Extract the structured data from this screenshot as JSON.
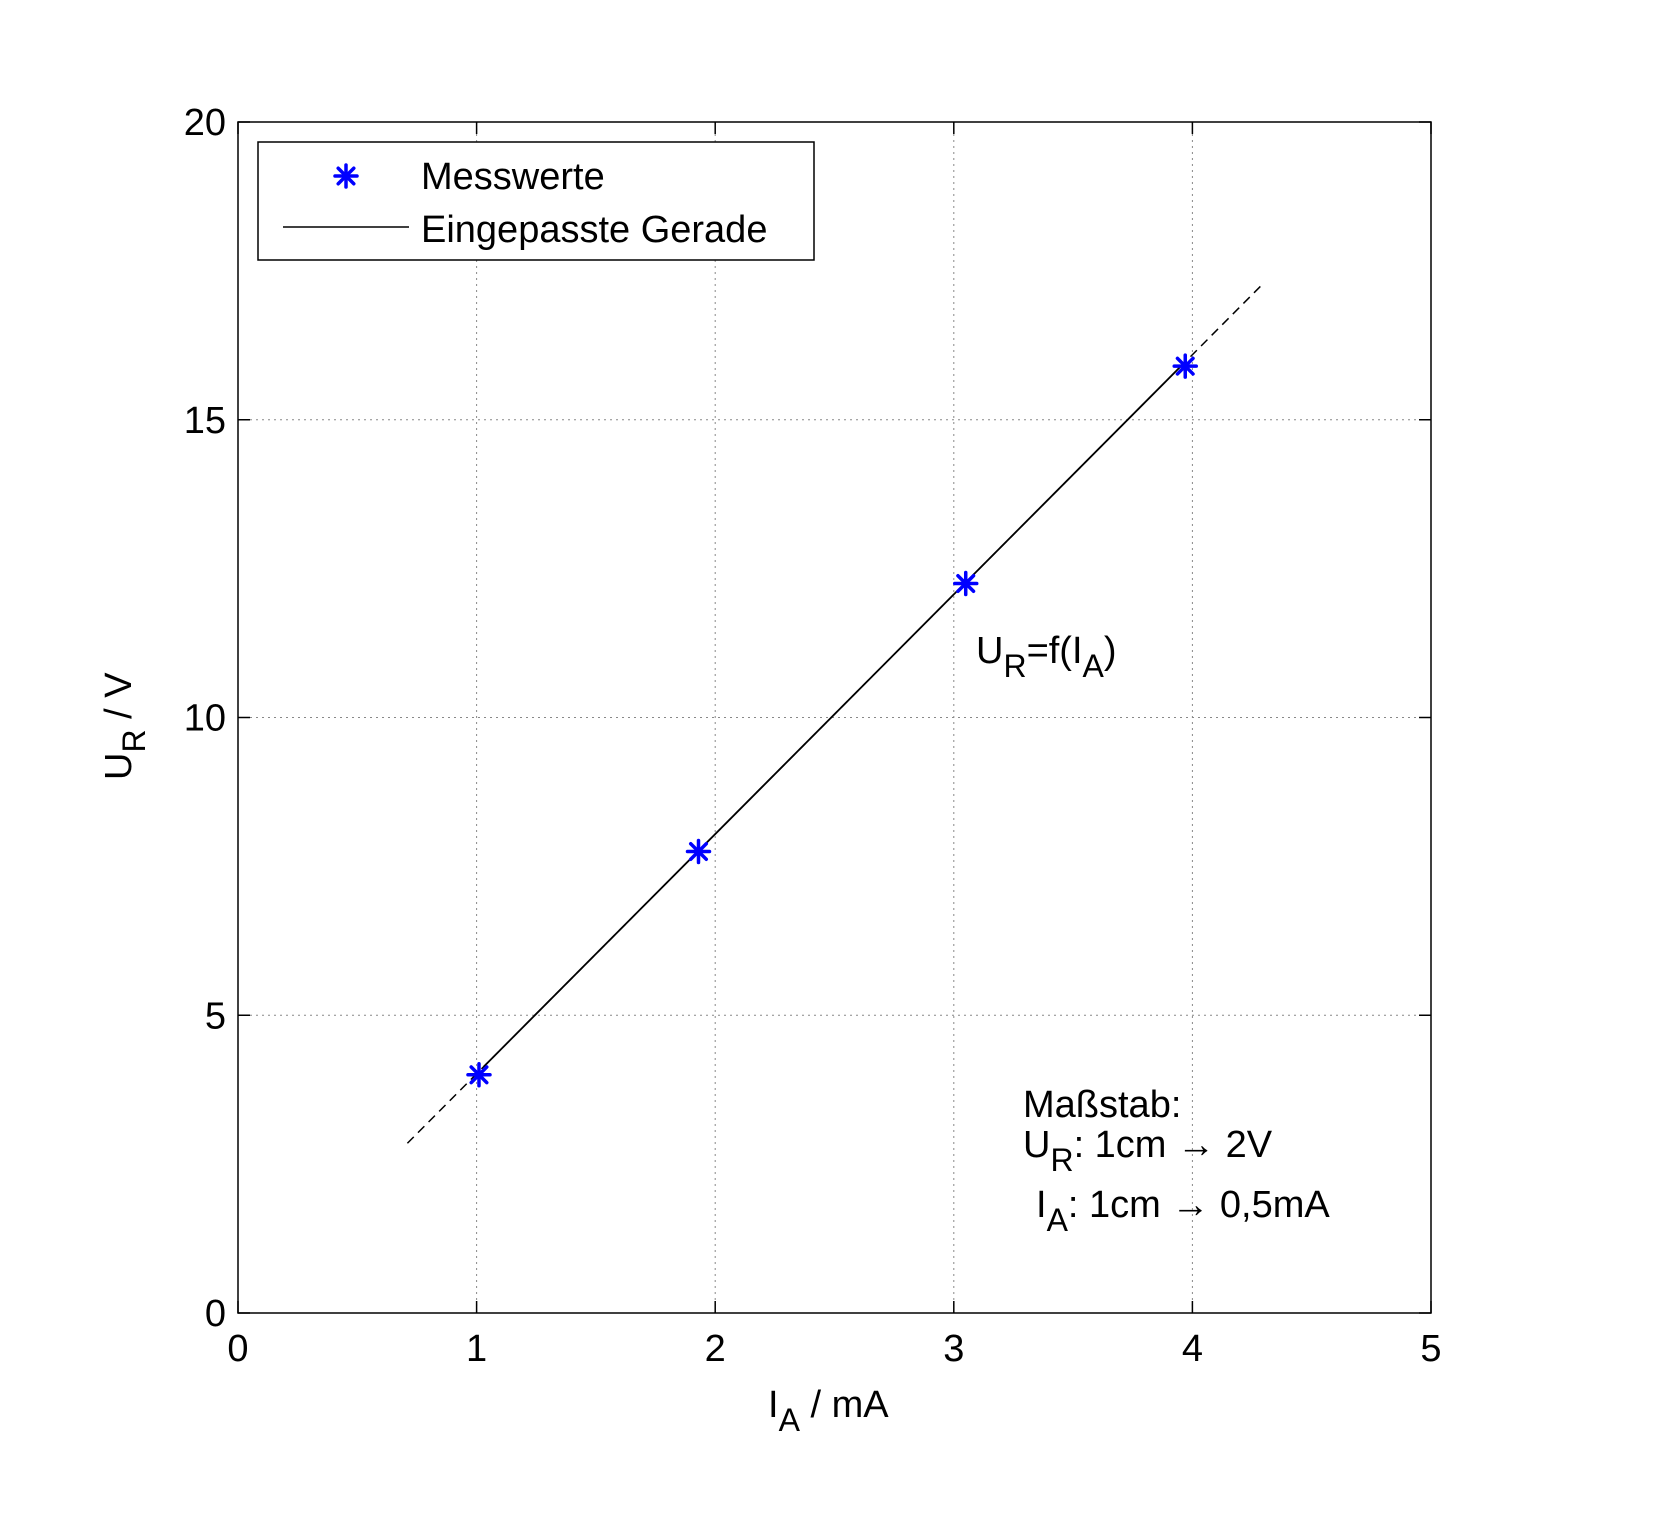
{
  "chart_data": {
    "type": "scatter",
    "xlabel": {
      "main": "I",
      "sub": "A",
      "rest": " / mA"
    },
    "ylabel": {
      "main": "U",
      "sub": "R",
      "rest": " / V"
    },
    "xlim": [
      0,
      5
    ],
    "ylim": [
      0,
      20
    ],
    "xticks": [
      "0",
      "1",
      "2",
      "3",
      "4",
      "5"
    ],
    "yticks": [
      "0",
      "5",
      "10",
      "15",
      "20"
    ],
    "grid": true,
    "legend": {
      "position": "top-left",
      "entries": [
        "Messwerte",
        "Eingepasste Gerade"
      ]
    },
    "colors": {
      "points": "#0000ff",
      "line": "#000000"
    },
    "series": [
      {
        "name": "Messwerte",
        "kind": "points",
        "x": [
          1.01,
          1.93,
          3.05,
          3.97
        ],
        "y": [
          4.0,
          7.75,
          12.25,
          15.9
        ]
      },
      {
        "name": "Eingepasste Gerade",
        "kind": "line",
        "x": [
          0.71,
          4.3
        ],
        "y": [
          2.85,
          17.3
        ],
        "solid_range": [
          1.03,
          3.95
        ]
      }
    ],
    "annotations": {
      "function_label": {
        "a": "U",
        "b": "R",
        "c": "=f(I",
        "d": "A",
        "e": ")"
      },
      "scale_title": "Maßstab:",
      "scale_line1": {
        "a": "U",
        "b": "R",
        "c": ": 1cm → 2V"
      },
      "scale_line2": {
        "a": "I",
        "b": "A",
        "c": ": 1cm → 0,5mA"
      }
    }
  }
}
